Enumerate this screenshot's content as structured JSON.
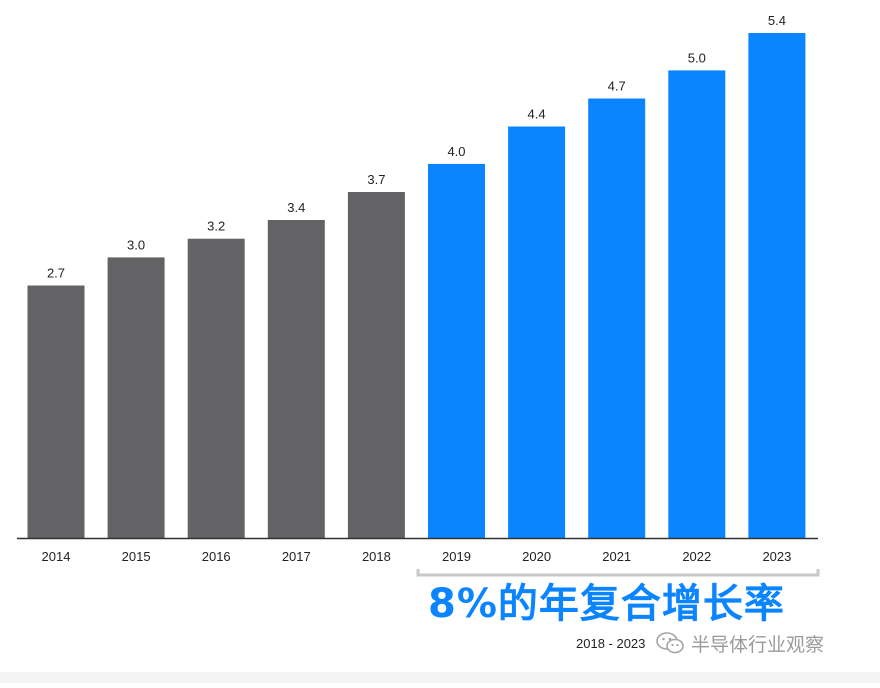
{
  "chart_data": {
    "type": "bar",
    "categories": [
      "2014",
      "2015",
      "2016",
      "2017",
      "2018",
      "2019",
      "2020",
      "2021",
      "2022",
      "2023"
    ],
    "values": [
      2.7,
      3.0,
      3.2,
      3.4,
      3.7,
      4.0,
      4.4,
      4.7,
      5.0,
      5.4
    ],
    "value_labels": [
      "2.7",
      "3.0",
      "3.2",
      "3.4",
      "3.7",
      "4.0",
      "4.4",
      "4.7",
      "5.0",
      "5.4"
    ],
    "ylim": [
      0,
      5.4
    ],
    "grid": false,
    "colors": {
      "historical": "#636366",
      "forecast": "#0A84FF",
      "axis": "#333333",
      "bracket": "#c8c8c8"
    },
    "forecast_start_index": 5,
    "annotation": {
      "cagr": "8%的年复合增长率",
      "cagr_color": "#0A84FF",
      "range": "2018 - 2023"
    }
  },
  "watermark": {
    "icon": "wechat-icon",
    "text": "半导体行业观察"
  }
}
